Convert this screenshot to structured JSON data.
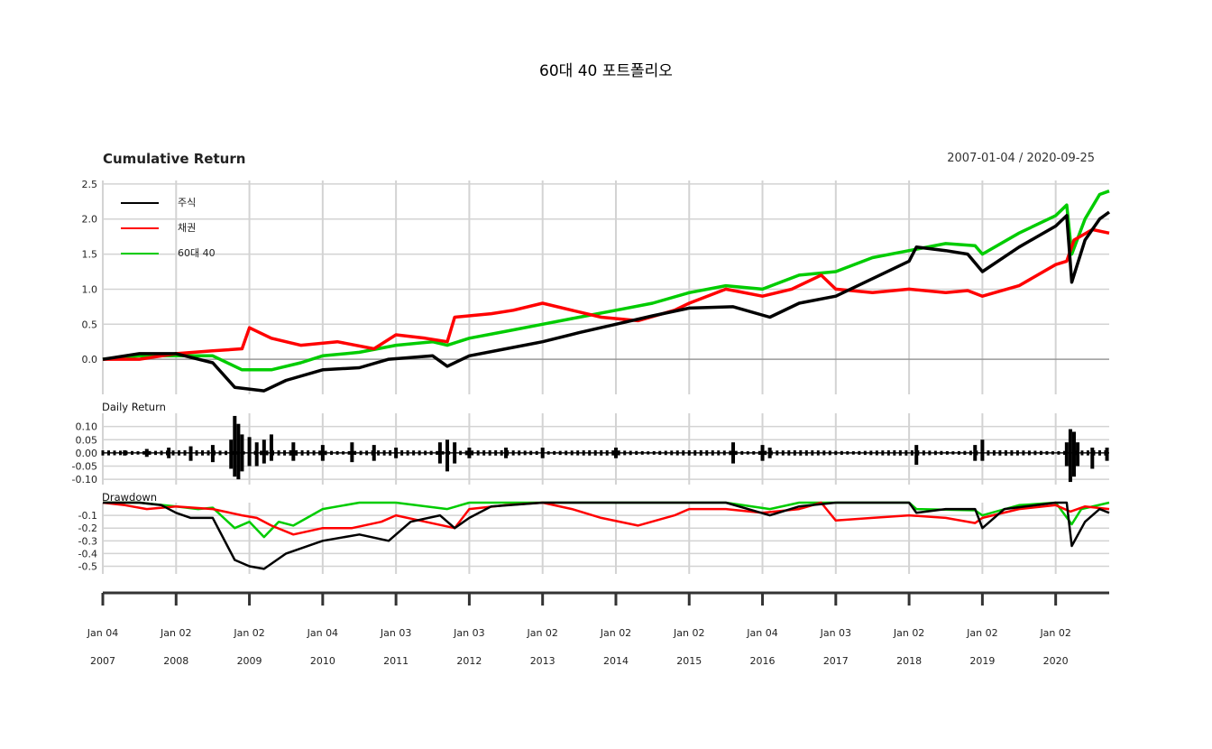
{
  "title": "60대 40 포트폴리오",
  "panels": {
    "cumulative_title": "Cumulative Return",
    "date_range": "2007-01-04 / 2020-09-25",
    "daily_title": "Daily Return",
    "drawdown_title": "Drawdown"
  },
  "colors": {
    "stock": "#000000",
    "bond": "#ff0000",
    "portfolio": "#00cc00",
    "grid": "#d3d3d3"
  },
  "chart_data": [
    {
      "type": "line",
      "panel": "Cumulative Return",
      "title": "Cumulative Return",
      "y_ticks": [
        "2.5",
        "2.0",
        "1.5",
        "1.0",
        "0.5",
        "0.0"
      ],
      "y_tick_values": [
        2.5,
        2.0,
        1.5,
        1.0,
        0.5,
        0.0
      ],
      "ylim": [
        -0.5,
        2.55
      ],
      "legend": "top-left",
      "series": [
        {
          "name": "주식",
          "color": "#000000",
          "x": [
            2007.0,
            2007.5,
            2008.0,
            2008.5,
            2008.8,
            2009.2,
            2009.5,
            2010.0,
            2010.5,
            2010.9,
            2011.5,
            2011.7,
            2012.0,
            2012.5,
            2013.0,
            2013.5,
            2014.0,
            2014.5,
            2015.0,
            2015.6,
            2016.1,
            2016.5,
            2017.0,
            2017.5,
            2018.0,
            2018.1,
            2018.5,
            2018.8,
            2019.0,
            2019.5,
            2020.0,
            2020.15,
            2020.22,
            2020.4,
            2020.6,
            2020.73
          ],
          "y": [
            0.0,
            0.08,
            0.08,
            -0.05,
            -0.4,
            -0.45,
            -0.3,
            -0.15,
            -0.12,
            0.0,
            0.05,
            -0.1,
            0.05,
            0.15,
            0.25,
            0.38,
            0.5,
            0.62,
            0.73,
            0.75,
            0.6,
            0.8,
            0.9,
            1.15,
            1.4,
            1.6,
            1.55,
            1.5,
            1.25,
            1.6,
            1.9,
            2.05,
            1.1,
            1.7,
            2.0,
            2.1
          ]
        },
        {
          "name": "채권",
          "color": "#ff0000",
          "x": [
            2007.0,
            2007.5,
            2008.0,
            2008.5,
            2008.9,
            2009.0,
            2009.3,
            2009.7,
            2010.2,
            2010.7,
            2011.0,
            2011.4,
            2011.7,
            2011.8,
            2012.3,
            2012.6,
            2013.0,
            2013.4,
            2013.8,
            2014.3,
            2014.8,
            2015.0,
            2015.5,
            2016.0,
            2016.4,
            2016.8,
            2017.0,
            2017.5,
            2018.0,
            2018.5,
            2018.8,
            2019.0,
            2019.5,
            2020.0,
            2020.15,
            2020.25,
            2020.5,
            2020.73
          ],
          "y": [
            0.0,
            0.0,
            0.08,
            0.12,
            0.15,
            0.45,
            0.3,
            0.2,
            0.25,
            0.15,
            0.35,
            0.3,
            0.25,
            0.6,
            0.65,
            0.7,
            0.8,
            0.7,
            0.6,
            0.55,
            0.7,
            0.8,
            1.0,
            0.9,
            1.0,
            1.2,
            1.0,
            0.95,
            1.0,
            0.95,
            0.98,
            0.9,
            1.05,
            1.35,
            1.4,
            1.7,
            1.85,
            1.8
          ]
        },
        {
          "name": "60대 40",
          "color": "#00cc00",
          "x": [
            2007.0,
            2007.5,
            2008.0,
            2008.5,
            2008.9,
            2009.3,
            2009.7,
            2010.0,
            2010.5,
            2011.0,
            2011.5,
            2011.7,
            2012.0,
            2012.5,
            2013.0,
            2013.5,
            2014.0,
            2014.5,
            2015.0,
            2015.5,
            2016.0,
            2016.5,
            2017.0,
            2017.5,
            2018.0,
            2018.5,
            2018.9,
            2019.0,
            2019.5,
            2020.0,
            2020.15,
            2020.22,
            2020.4,
            2020.6,
            2020.73
          ],
          "y": [
            0.0,
            0.05,
            0.05,
            0.05,
            -0.15,
            -0.15,
            -0.05,
            0.05,
            0.1,
            0.2,
            0.25,
            0.2,
            0.3,
            0.4,
            0.5,
            0.6,
            0.7,
            0.8,
            0.95,
            1.05,
            1.0,
            1.2,
            1.25,
            1.45,
            1.55,
            1.65,
            1.62,
            1.5,
            1.8,
            2.05,
            2.2,
            1.5,
            2.0,
            2.35,
            2.4
          ]
        }
      ]
    },
    {
      "type": "bar",
      "panel": "Daily Return",
      "title": "Daily Return",
      "y_ticks": [
        "0.10",
        "0.05",
        "0.00",
        "-0.05",
        "-0.10"
      ],
      "y_tick_values": [
        0.1,
        0.05,
        0.0,
        -0.05,
        -0.1
      ],
      "ylim": [
        -0.12,
        0.15
      ],
      "series": [
        {
          "name": "주식",
          "x": [
            2007.3,
            2007.6,
            2007.9,
            2008.2,
            2008.5,
            2008.75,
            2008.8,
            2008.85,
            2008.9,
            2009.0,
            2009.1,
            2009.2,
            2009.3,
            2009.6,
            2010.0,
            2010.4,
            2010.7,
            2011.0,
            2011.6,
            2011.7,
            2011.8,
            2012.0,
            2012.5,
            2013.0,
            2014.0,
            2015.6,
            2016.0,
            2016.1,
            2018.1,
            2018.9,
            2019.0,
            2020.15,
            2020.2,
            2020.25,
            2020.3,
            2020.5,
            2020.7
          ],
          "up": [
            0.01,
            0.015,
            0.02,
            0.025,
            0.03,
            0.05,
            0.14,
            0.11,
            0.07,
            0.06,
            0.04,
            0.05,
            0.07,
            0.04,
            0.03,
            0.04,
            0.03,
            0.02,
            0.04,
            0.05,
            0.04,
            0.02,
            0.02,
            0.02,
            0.02,
            0.04,
            0.03,
            0.02,
            0.03,
            0.03,
            0.05,
            0.04,
            0.09,
            0.08,
            0.04,
            0.02,
            0.02
          ],
          "down": [
            -0.01,
            -0.015,
            -0.02,
            -0.03,
            -0.035,
            -0.06,
            -0.09,
            -0.1,
            -0.07,
            -0.05,
            -0.05,
            -0.04,
            -0.03,
            -0.03,
            -0.03,
            -0.035,
            -0.03,
            -0.02,
            -0.04,
            -0.07,
            -0.04,
            -0.02,
            -0.02,
            -0.02,
            -0.02,
            -0.04,
            -0.03,
            -0.02,
            -0.045,
            -0.03,
            -0.03,
            -0.05,
            -0.11,
            -0.09,
            -0.05,
            -0.06,
            -0.03
          ]
        }
      ]
    },
    {
      "type": "line",
      "panel": "Drawdown",
      "title": "Drawdown",
      "y_ticks": [
        "-0.1",
        "-0.2",
        "-0.3",
        "-0.4",
        "-0.5"
      ],
      "y_tick_values": [
        -0.1,
        -0.2,
        -0.3,
        -0.4,
        -0.5
      ],
      "ylim": [
        -0.56,
        0.0
      ],
      "series": [
        {
          "name": "주식",
          "x": [
            2007.0,
            2007.5,
            2007.8,
            2008.0,
            2008.2,
            2008.5,
            2008.8,
            2009.0,
            2009.2,
            2009.5,
            2010.0,
            2010.5,
            2010.9,
            2011.2,
            2011.6,
            2011.8,
            2012.0,
            2012.3,
            2013.0,
            2014.0,
            2015.5,
            2016.1,
            2016.5,
            2017.0,
            2018.0,
            2018.1,
            2018.5,
            2018.9,
            2019.0,
            2019.3,
            2020.0,
            2020.15,
            2020.22,
            2020.4,
            2020.6,
            2020.73
          ],
          "y": [
            0.0,
            0.0,
            -0.02,
            -0.08,
            -0.12,
            -0.12,
            -0.45,
            -0.5,
            -0.52,
            -0.4,
            -0.3,
            -0.25,
            -0.3,
            -0.15,
            -0.1,
            -0.2,
            -0.12,
            -0.03,
            0.0,
            0.0,
            0.0,
            -0.1,
            -0.03,
            0.0,
            0.0,
            -0.08,
            -0.05,
            -0.05,
            -0.2,
            -0.05,
            0.0,
            0.0,
            -0.34,
            -0.15,
            -0.05,
            -0.08
          ]
        },
        {
          "name": "채권",
          "x": [
            2007.0,
            2007.3,
            2007.6,
            2008.0,
            2008.5,
            2008.9,
            2009.1,
            2009.3,
            2009.6,
            2010.0,
            2010.4,
            2010.8,
            2011.0,
            2011.4,
            2011.8,
            2012.0,
            2012.5,
            2013.0,
            2013.4,
            2013.8,
            2014.3,
            2014.8,
            2015.0,
            2015.5,
            2016.0,
            2016.5,
            2016.8,
            2017.0,
            2017.5,
            2018.0,
            2018.5,
            2018.9,
            2019.0,
            2019.5,
            2020.0,
            2020.2,
            2020.4,
            2020.73
          ],
          "y": [
            0.0,
            -0.02,
            -0.05,
            -0.03,
            -0.05,
            -0.1,
            -0.12,
            -0.18,
            -0.25,
            -0.2,
            -0.2,
            -0.15,
            -0.1,
            -0.15,
            -0.2,
            -0.05,
            -0.02,
            0.0,
            -0.05,
            -0.12,
            -0.18,
            -0.1,
            -0.05,
            -0.05,
            -0.08,
            -0.05,
            0.0,
            -0.14,
            -0.12,
            -0.1,
            -0.12,
            -0.16,
            -0.12,
            -0.05,
            -0.02,
            -0.07,
            -0.03,
            -0.05
          ]
        },
        {
          "name": "60대 40",
          "x": [
            2007.0,
            2007.5,
            2008.0,
            2008.3,
            2008.5,
            2008.8,
            2009.0,
            2009.2,
            2009.4,
            2009.6,
            2010.0,
            2010.5,
            2011.0,
            2011.7,
            2012.0,
            2013.0,
            2015.5,
            2016.1,
            2016.5,
            2017.0,
            2018.0,
            2018.1,
            2018.9,
            2019.0,
            2019.5,
            2020.0,
            2020.22,
            2020.35,
            2020.73
          ],
          "y": [
            0.0,
            0.0,
            -0.03,
            -0.05,
            -0.04,
            -0.2,
            -0.15,
            -0.27,
            -0.15,
            -0.18,
            -0.05,
            0.0,
            0.0,
            -0.05,
            0.0,
            0.0,
            0.0,
            -0.05,
            0.0,
            0.0,
            0.0,
            -0.05,
            -0.06,
            -0.1,
            -0.02,
            0.0,
            -0.17,
            -0.05,
            0.0
          ]
        }
      ]
    }
  ],
  "x_axis": {
    "ticks": [
      {
        "month": "Jan 04",
        "year": "2007",
        "value": 2007.0
      },
      {
        "month": "Jan 02",
        "year": "2008",
        "value": 2008.0
      },
      {
        "month": "Jan 02",
        "year": "2009",
        "value": 2009.0
      },
      {
        "month": "Jan 04",
        "year": "2010",
        "value": 2010.0
      },
      {
        "month": "Jan 03",
        "year": "2011",
        "value": 2011.0
      },
      {
        "month": "Jan 03",
        "year": "2012",
        "value": 2012.0
      },
      {
        "month": "Jan 02",
        "year": "2013",
        "value": 2013.0
      },
      {
        "month": "Jan 02",
        "year": "2014",
        "value": 2014.0
      },
      {
        "month": "Jan 02",
        "year": "2015",
        "value": 2015.0
      },
      {
        "month": "Jan 04",
        "year": "2016",
        "value": 2016.0
      },
      {
        "month": "Jan 03",
        "year": "2017",
        "value": 2017.0
      },
      {
        "month": "Jan 02",
        "year": "2018",
        "value": 2018.0
      },
      {
        "month": "Jan 02",
        "year": "2019",
        "value": 2019.0
      },
      {
        "month": "Jan 02",
        "year": "2020",
        "value": 2020.0
      }
    ],
    "xlim": [
      2007.0,
      2020.73
    ]
  }
}
